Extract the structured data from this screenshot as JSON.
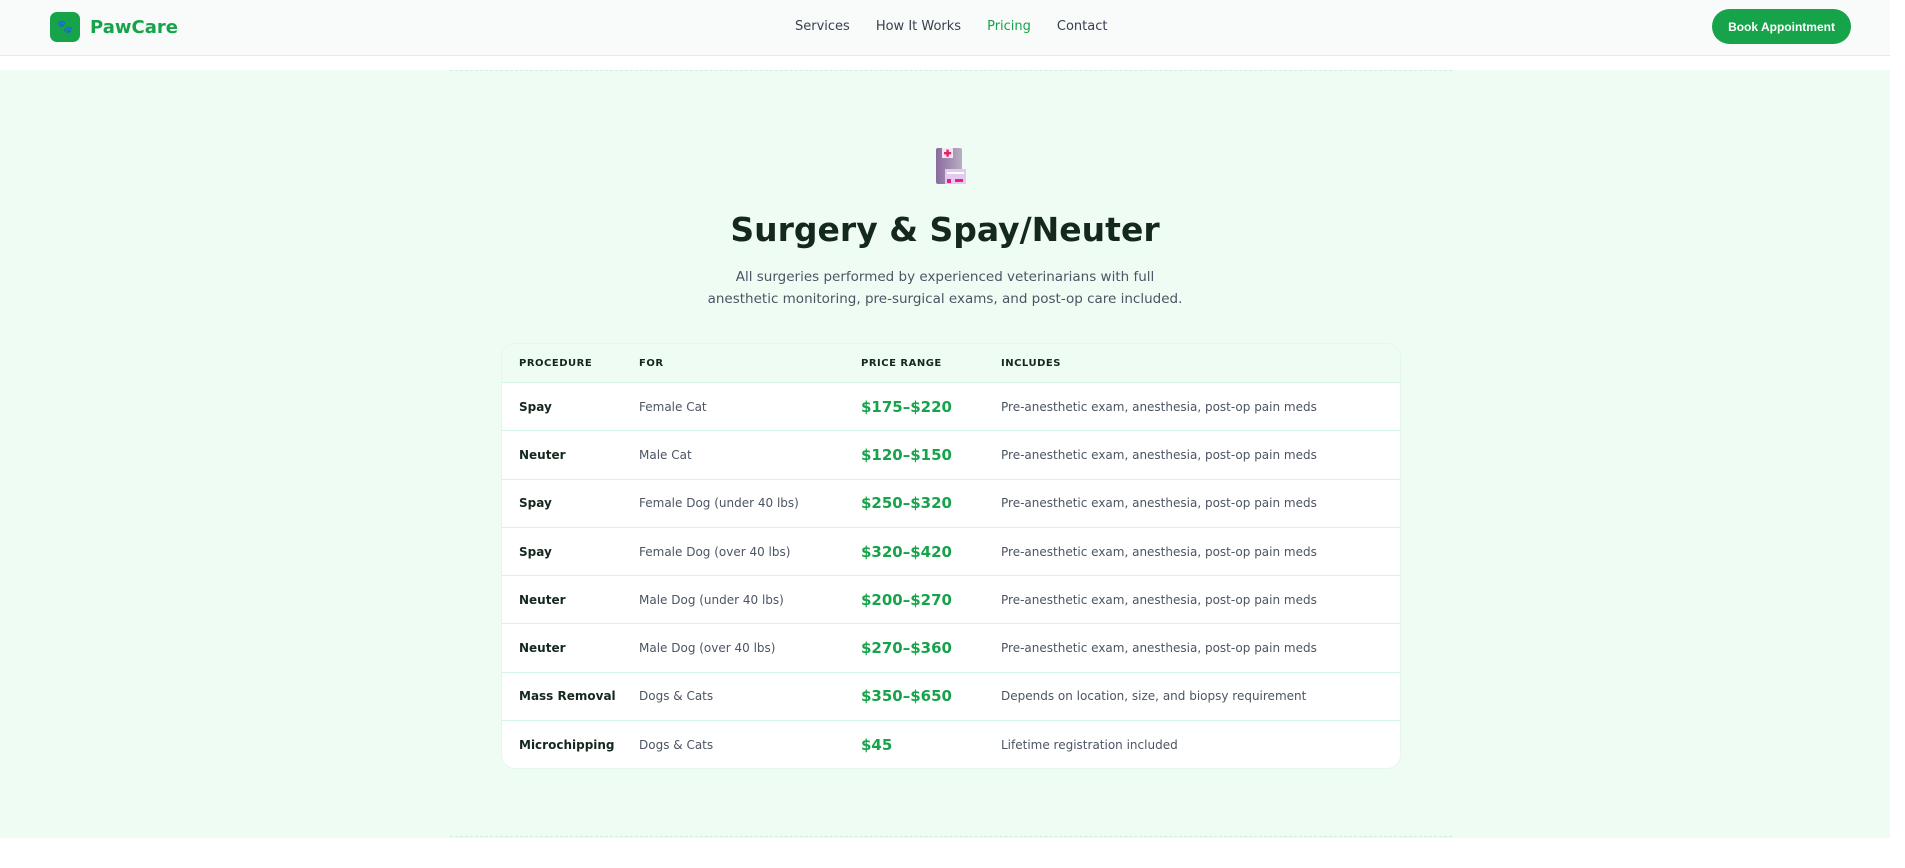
{
  "nav": {
    "brand": "PawCare",
    "links": [
      "Services",
      "How It Works",
      "Pricing",
      "Contact"
    ],
    "active": "Pricing",
    "cta": "Book Appointment"
  },
  "section": {
    "icon": "hospital-icon",
    "title": "Surgery & Spay/Neuter",
    "subtitle_line1": "All surgeries performed by experienced veterinarians with full",
    "subtitle_line2": "anesthetic monitoring, pre-surgical exams, and post-op care included."
  },
  "table": {
    "headers": [
      "PROCEDURE",
      "FOR",
      "PRICE RANGE",
      "INCLUDES"
    ],
    "rows": [
      [
        "Spay",
        "Female Cat",
        "$175–$220",
        "Pre-anesthetic exam, anesthesia, post-op pain meds"
      ],
      [
        "Neuter",
        "Male Cat",
        "$120–$150",
        "Pre-anesthetic exam, anesthesia, post-op pain meds"
      ],
      [
        "Spay",
        "Female Dog (under 40 lbs)",
        "$250–$320",
        "Pre-anesthetic exam, anesthesia, post-op pain meds"
      ],
      [
        "Spay",
        "Female Dog (over 40 lbs)",
        "$320–$420",
        "Pre-anesthetic exam, anesthesia, post-op pain meds"
      ],
      [
        "Neuter",
        "Male Dog (under 40 lbs)",
        "$200–$270",
        "Pre-anesthetic exam, anesthesia, post-op pain meds"
      ],
      [
        "Neuter",
        "Male Dog (over 40 lbs)",
        "$270–$360",
        "Pre-anesthetic exam, anesthesia, post-op pain meds"
      ],
      [
        "Mass Removal",
        "Dogs & Cats",
        "$350–$650",
        "Depends on location, size, and biopsy requirement"
      ],
      [
        "Microchipping",
        "Dogs & Cats",
        "$45",
        "Lifetime registration included"
      ]
    ]
  },
  "colors": {
    "brand": "#16a34a",
    "hero_bg": "#effcf3"
  }
}
